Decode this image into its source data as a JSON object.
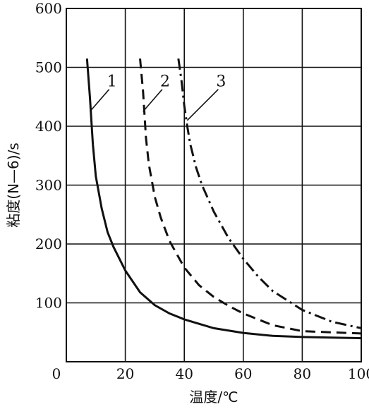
{
  "chart_data": {
    "type": "line",
    "title": "",
    "xlabel": "温度/℃",
    "ylabel": "粘度(N—6)/s",
    "xlim": [
      0,
      100
    ],
    "ylim": [
      0,
      600
    ],
    "x_ticks": [
      0,
      20,
      40,
      60,
      80,
      100
    ],
    "y_ticks": [
      100,
      200,
      300,
      400,
      500,
      600
    ],
    "grid": true,
    "series": [
      {
        "name": "1",
        "line_style": "solid",
        "x": [
          7,
          8,
          9,
          10,
          12,
          14,
          16,
          20,
          25,
          30,
          35,
          40,
          50,
          60,
          70,
          80,
          90,
          100
        ],
        "y": [
          515,
          450,
          370,
          315,
          260,
          220,
          195,
          155,
          118,
          96,
          82,
          72,
          57,
          49,
          44,
          42,
          41,
          40
        ]
      },
      {
        "name": "2",
        "line_style": "dashed",
        "x": [
          25,
          26,
          27,
          28,
          30,
          32,
          35,
          40,
          45,
          50,
          55,
          60,
          70,
          80,
          90,
          100
        ],
        "y": [
          515,
          460,
          380,
          335,
          280,
          245,
          205,
          160,
          130,
          110,
          95,
          82,
          62,
          52,
          50,
          48
        ]
      },
      {
        "name": "3",
        "line_style": "dashdot",
        "x": [
          38,
          39,
          40,
          41,
          42,
          44,
          46,
          50,
          55,
          60,
          65,
          70,
          80,
          90,
          100
        ],
        "y": [
          515,
          480,
          435,
          400,
          370,
          330,
          300,
          255,
          210,
          175,
          145,
          120,
          88,
          68,
          57
        ]
      }
    ],
    "label_anchors": [
      {
        "series": "1",
        "text": "1",
        "label_x": 15,
        "label_y": 465,
        "point_x": 8,
        "point_y": 425
      },
      {
        "series": "2",
        "text": "2",
        "label_x": 33,
        "label_y": 465,
        "point_x": 26,
        "point_y": 425
      },
      {
        "series": "3",
        "text": "3",
        "label_x": 52,
        "label_y": 465,
        "point_x": 41,
        "point_y": 410
      }
    ]
  }
}
